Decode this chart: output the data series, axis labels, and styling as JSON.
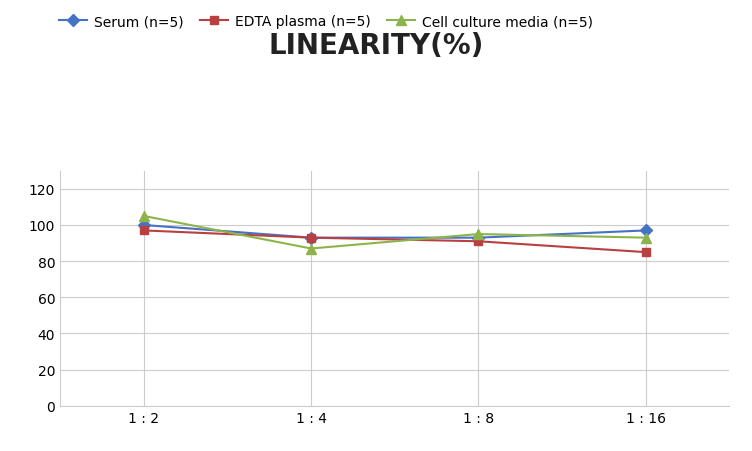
{
  "title": "LINEARITY(%)",
  "x_labels": [
    "1 : 2",
    "1 : 4",
    "1 : 8",
    "1 : 16"
  ],
  "x_positions": [
    0,
    1,
    2,
    3
  ],
  "series": [
    {
      "name": "Serum (n=5)",
      "values": [
        100,
        93,
        93,
        97
      ],
      "color": "#4472C4",
      "marker": "D",
      "markersize": 6
    },
    {
      "name": "EDTA plasma (n=5)",
      "values": [
        97,
        93,
        91,
        85
      ],
      "color": "#B94040",
      "marker": "s",
      "markersize": 6
    },
    {
      "name": "Cell culture media (n=5)",
      "values": [
        105,
        87,
        95,
        93
      ],
      "color": "#8DB44A",
      "marker": "^",
      "markersize": 7
    }
  ],
  "ylim": [
    0,
    130
  ],
  "yticks": [
    0,
    20,
    40,
    60,
    80,
    100,
    120
  ],
  "grid_color": "#CCCCCC",
  "title_fontsize": 20,
  "legend_fontsize": 10,
  "tick_fontsize": 10,
  "background_color": "#FFFFFF"
}
